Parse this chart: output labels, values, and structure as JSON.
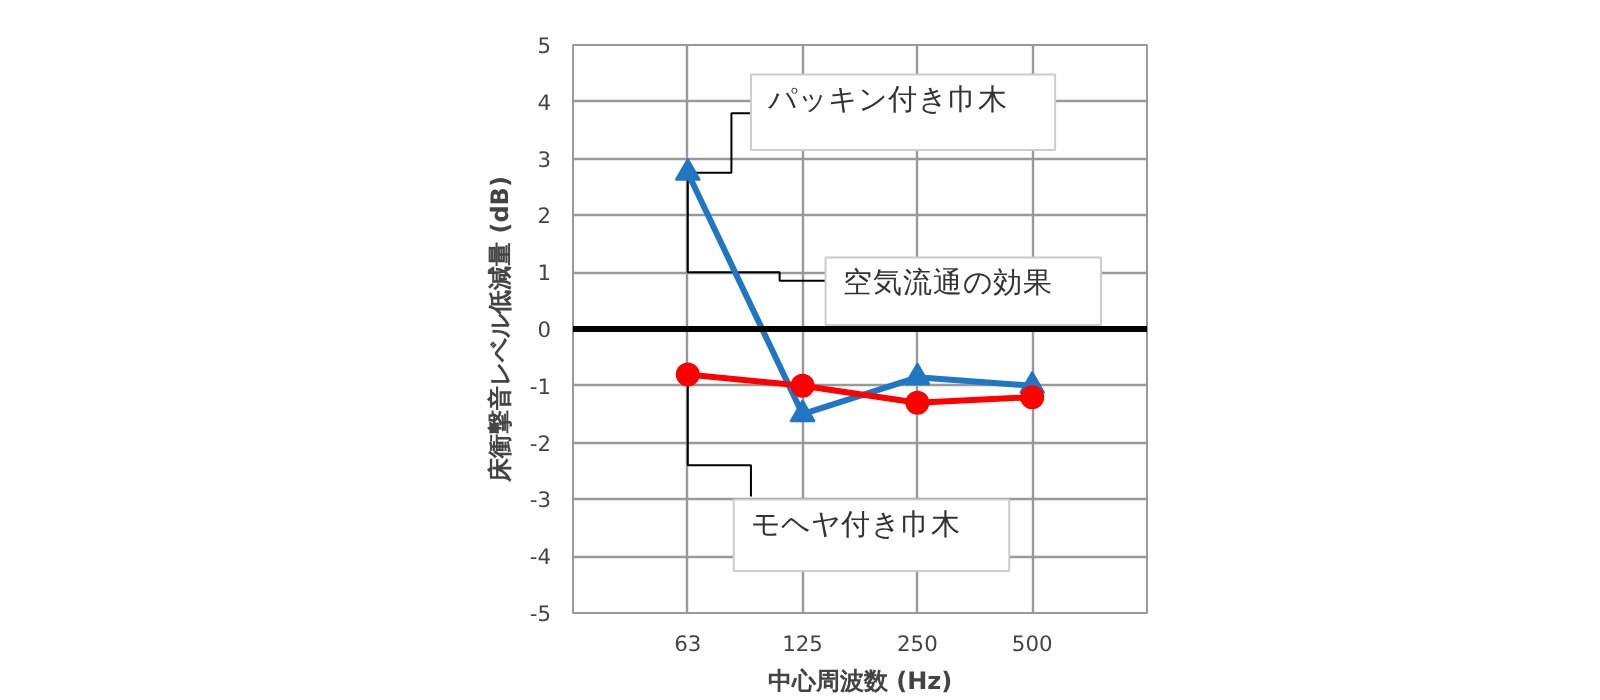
{
  "chart_data": {
    "type": "line",
    "xlabel": "中心周波数 (Hz)",
    "ylabel": "床衝撃音レベル低減量 (dB)",
    "categories": [
      "63",
      "125",
      "250",
      "500"
    ],
    "series": [
      {
        "color": "#1f77c4",
        "marker": "triangle",
        "values": [
          2.75,
          -1.5,
          -0.85,
          -1.0
        ]
      },
      {
        "color": "#ff0000",
        "marker": "circle",
        "values": [
          -0.8,
          -1.0,
          -1.3,
          -1.2
        ]
      }
    ],
    "ylim": [
      -5,
      5
    ],
    "yticks": [
      -5,
      -4,
      -3,
      -2,
      -1,
      0,
      1,
      2,
      3,
      4,
      5
    ],
    "grid": true,
    "ref_lines": [
      {
        "axis": "y",
        "value": 0,
        "color": "#000000"
      }
    ],
    "annotations": [
      {
        "text": "パッキン付き巾木",
        "x": "63",
        "y": 2.75
      },
      {
        "text": "空気流通の効果",
        "x": "63",
        "y": 2.75
      },
      {
        "text": "モヘヤ付き巾木",
        "x": "63",
        "y": -0.8
      }
    ]
  }
}
